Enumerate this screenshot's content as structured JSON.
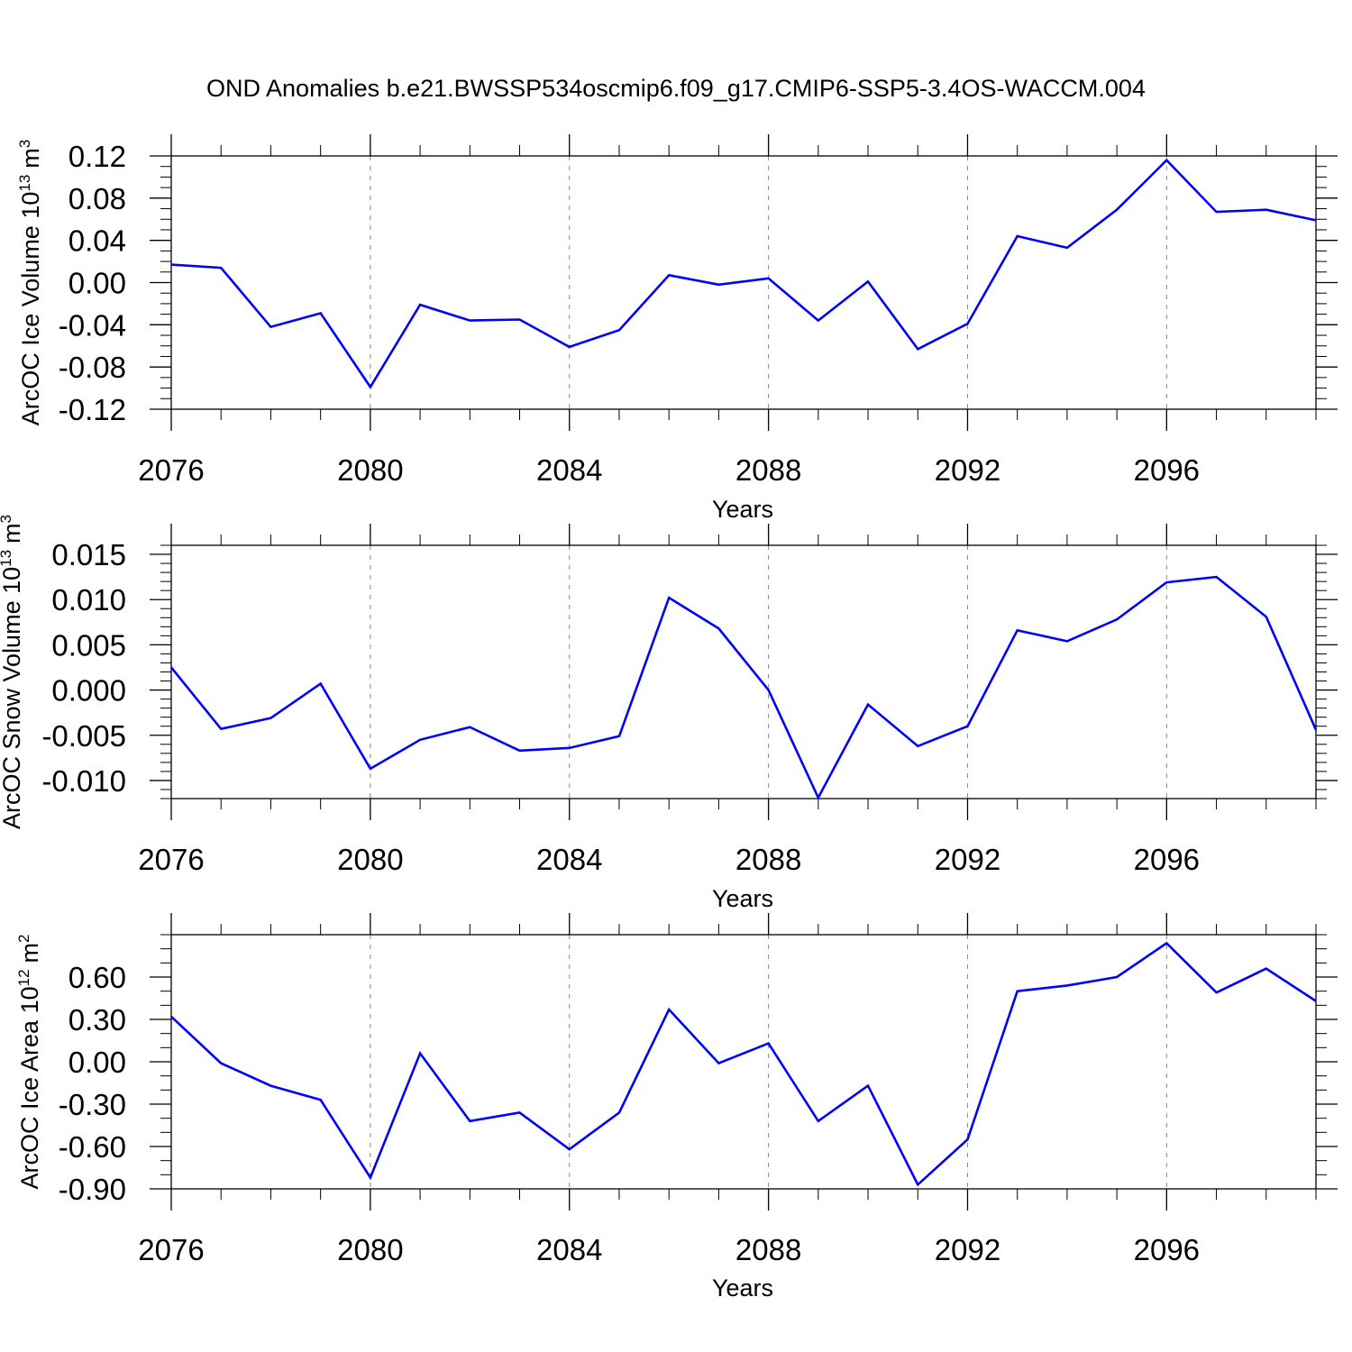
{
  "figure_title": "OND Anomalies b.e21.BWSSP534oscmip6.f09_g17.CMIP6-SSP5-3.4OS-WACCM.004",
  "chart_data": [
    {
      "type": "line",
      "title": "OND Anomalies b.e21.BWSSP534oscmip6.f09_g17.CMIP6-SSP5-3.4OS-WACCM.004",
      "ylabel": "ArcOC Ice Volume 10",
      "ylabel_sup": "13",
      "ylabel_unit": "m",
      "ylabel_unit_sup": "3",
      "xlabel": "Years",
      "xlim": [
        2076,
        2099
      ],
      "ylim": [
        -0.12,
        0.12
      ],
      "grid": "dashed vertical",
      "x_ticks": [
        2076,
        2080,
        2084,
        2088,
        2092,
        2096
      ],
      "x_tick_labels": [
        "2076",
        "2080",
        "2084",
        "2088",
        "2092",
        "2096"
      ],
      "y_ticks": [
        -0.12,
        -0.08,
        -0.04,
        0.0,
        0.04,
        0.08,
        0.12
      ],
      "y_tick_labels": [
        "-0.12",
        "-0.08",
        "-0.04",
        "0.00",
        "0.04",
        "0.08",
        "0.12"
      ],
      "y_minor_step": 0.01,
      "x": [
        2076,
        2077,
        2078,
        2079,
        2080,
        2081,
        2082,
        2083,
        2084,
        2085,
        2086,
        2087,
        2088,
        2089,
        2090,
        2091,
        2092,
        2093,
        2094,
        2095,
        2096,
        2097,
        2098,
        2099
      ],
      "series": [
        {
          "name": "ArcOC Ice Volume",
          "color": "#0000ff",
          "values": [
            0.017,
            0.014,
            -0.042,
            -0.029,
            -0.099,
            -0.021,
            -0.036,
            -0.035,
            -0.061,
            -0.045,
            0.007,
            -0.002,
            0.004,
            -0.036,
            0.001,
            -0.063,
            -0.039,
            0.044,
            0.033,
            0.069,
            0.116,
            0.067,
            0.069,
            0.059
          ]
        }
      ]
    },
    {
      "type": "line",
      "title": "",
      "ylabel": "ArcOC Snow Volume 10",
      "ylabel_sup": "13",
      "ylabel_unit": "m",
      "ylabel_unit_sup": "3",
      "xlabel": "Years",
      "xlim": [
        2076,
        2099
      ],
      "ylim": [
        -0.012,
        0.016
      ],
      "grid": "dashed vertical",
      "x_ticks": [
        2076,
        2080,
        2084,
        2088,
        2092,
        2096
      ],
      "x_tick_labels": [
        "2076",
        "2080",
        "2084",
        "2088",
        "2092",
        "2096"
      ],
      "y_ticks": [
        -0.01,
        -0.005,
        0.0,
        0.005,
        0.01,
        0.015
      ],
      "y_tick_labels": [
        "-0.010",
        "-0.005",
        "0.000",
        "0.005",
        "0.010",
        "0.015"
      ],
      "y_minor_step": 0.001,
      "x": [
        2076,
        2077,
        2078,
        2079,
        2080,
        2081,
        2082,
        2083,
        2084,
        2085,
        2086,
        2087,
        2088,
        2089,
        2090,
        2091,
        2092,
        2093,
        2094,
        2095,
        2096,
        2097,
        2098,
        2099
      ],
      "series": [
        {
          "name": "ArcOC Snow Volume",
          "color": "#0000ff",
          "values": [
            0.0025,
            -0.0043,
            -0.0031,
            0.0007,
            -0.0087,
            -0.0055,
            -0.0041,
            -0.0067,
            -0.0064,
            -0.0051,
            0.0102,
            0.0068,
            0.0,
            -0.0119,
            -0.0016,
            -0.0062,
            -0.004,
            0.0066,
            0.0054,
            0.0078,
            0.0119,
            0.0125,
            0.0081,
            -0.0044
          ]
        }
      ]
    },
    {
      "type": "line",
      "title": "",
      "ylabel": "ArcOC Ice Area 10",
      "ylabel_sup": "12",
      "ylabel_unit": "m",
      "ylabel_unit_sup": "2",
      "xlabel": "Years",
      "xlim": [
        2076,
        2099
      ],
      "ylim": [
        -0.9,
        0.9
      ],
      "grid": "dashed vertical",
      "x_ticks": [
        2076,
        2080,
        2084,
        2088,
        2092,
        2096
      ],
      "x_tick_labels": [
        "2076",
        "2080",
        "2084",
        "2088",
        "2092",
        "2096"
      ],
      "y_ticks": [
        -0.9,
        -0.6,
        -0.3,
        0.0,
        0.3,
        0.6
      ],
      "y_tick_labels": [
        "-0.90",
        "-0.60",
        "-0.30",
        "0.00",
        "0.30",
        "0.60"
      ],
      "y_minor_step": 0.1,
      "x": [
        2076,
        2077,
        2078,
        2079,
        2080,
        2081,
        2082,
        2083,
        2084,
        2085,
        2086,
        2087,
        2088,
        2089,
        2090,
        2091,
        2092,
        2093,
        2094,
        2095,
        2096,
        2097,
        2098,
        2099
      ],
      "series": [
        {
          "name": "ArcOC Ice Area",
          "color": "#0000ff",
          "values": [
            0.32,
            -0.01,
            -0.17,
            -0.27,
            -0.82,
            0.06,
            -0.42,
            -0.36,
            -0.62,
            -0.36,
            0.37,
            -0.01,
            0.13,
            -0.42,
            -0.17,
            -0.87,
            -0.55,
            0.5,
            0.54,
            0.6,
            0.84,
            0.49,
            0.66,
            0.43
          ]
        }
      ]
    }
  ]
}
